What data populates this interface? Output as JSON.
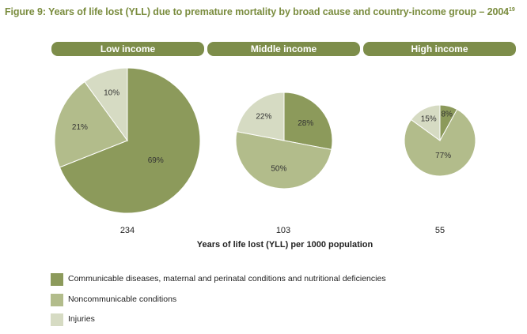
{
  "title": {
    "text": "Figure 9: Years of life lost (YLL) due to premature mortality by broad cause and country-income group – 2004",
    "superscript": "19"
  },
  "chart_data": {
    "type": "pie",
    "title": "Figure 9: Years of life lost (YLL) due to premature mortality by broad cause and country-income group – 2004",
    "xlabel": "Years of life lost (YLL) per 1000 population",
    "categories": [
      "Communicable diseases, maternal and perinatal conditions and nutritional deficiencies",
      "Noncommunicable conditions",
      "Injuries"
    ],
    "colors": [
      "#8c9a5b",
      "#b2bc8b",
      "#d6dbc3"
    ],
    "groups": [
      {
        "name": "Low income",
        "total": 234,
        "values": [
          69,
          21,
          10
        ],
        "labels": [
          "69%",
          "21%",
          "10%"
        ]
      },
      {
        "name": "Middle income",
        "total": 103,
        "values": [
          28,
          50,
          22
        ],
        "labels": [
          "28%",
          "50%",
          "22%"
        ]
      },
      {
        "name": "High income",
        "total": 55,
        "values": [
          8,
          77,
          15
        ],
        "labels": [
          "8%",
          "77%",
          "15%"
        ]
      }
    ]
  },
  "legend": [
    {
      "label": "Communicable diseases, maternal and perinatal conditions and nutritional deficiencies",
      "color": "#8c9a5b"
    },
    {
      "label": "Noncommunicable conditions",
      "color": "#b2bc8b"
    },
    {
      "label": "Injuries",
      "color": "#d6dbc3"
    }
  ]
}
